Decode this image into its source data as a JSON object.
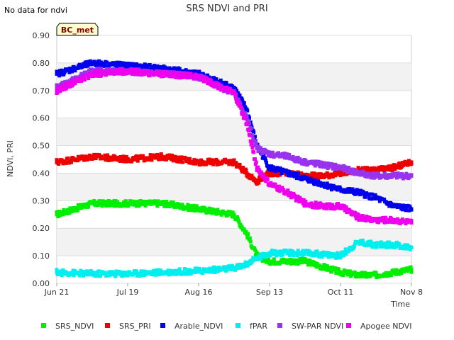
{
  "chart_data": {
    "type": "scatter",
    "title": "SRS NDVI and PRI",
    "note": "No data for ndvi",
    "badge": "BC_met",
    "xlabel": "Time",
    "ylabel": "NDVI, PRI",
    "ylim": [
      0,
      0.9
    ],
    "xlim": [
      "2022-06-21",
      "2022-11-08"
    ],
    "x_ticks": [
      "Jun 21",
      "Jul 19",
      "Aug 16",
      "Sep 13",
      "Oct 11",
      "Nov 8"
    ],
    "y_ticks": [
      "0.00",
      "0.10",
      "0.20",
      "0.30",
      "0.40",
      "0.50",
      "0.60",
      "0.70",
      "0.80",
      "0.90"
    ],
    "grid": "horizontal bands",
    "legend_position": "bottom",
    "x": [
      "2022-06-21",
      "2022-07-05",
      "2022-07-19",
      "2022-08-02",
      "2022-08-16",
      "2022-08-30",
      "2022-09-04",
      "2022-09-08",
      "2022-09-13",
      "2022-09-20",
      "2022-09-27",
      "2022-10-04",
      "2022-10-11",
      "2022-10-18",
      "2022-10-25",
      "2022-11-01",
      "2022-11-08"
    ],
    "series": [
      {
        "name": "SRS_NDVI",
        "color": "#00ee00",
        "values": [
          0.25,
          0.29,
          0.29,
          0.29,
          0.27,
          0.25,
          0.18,
          0.1,
          0.08,
          0.08,
          0.08,
          0.06,
          0.04,
          0.03,
          0.03,
          0.04,
          0.05
        ]
      },
      {
        "name": "SRS_PRI",
        "color": "#ee0000",
        "values": [
          0.44,
          0.46,
          0.45,
          0.46,
          0.44,
          0.44,
          0.4,
          0.37,
          0.4,
          0.4,
          0.39,
          0.39,
          0.4,
          0.41,
          0.41,
          0.42,
          0.44
        ]
      },
      {
        "name": "Arable_NDVI",
        "color": "#0000ee",
        "values": [
          0.76,
          0.8,
          0.79,
          0.78,
          0.76,
          0.71,
          0.63,
          0.5,
          0.42,
          0.4,
          0.38,
          0.36,
          0.34,
          0.33,
          0.31,
          0.28,
          0.27
        ]
      },
      {
        "name": "fPAR",
        "color": "#00eeee",
        "values": [
          0.04,
          0.035,
          0.035,
          0.04,
          0.045,
          0.055,
          0.07,
          0.09,
          0.11,
          0.11,
          0.11,
          0.105,
          0.1,
          0.15,
          0.14,
          0.14,
          0.13
        ]
      },
      {
        "name": "SW-PAR NDVI",
        "color": "#9933ee",
        "values": [
          0.71,
          0.77,
          0.77,
          0.76,
          0.75,
          0.69,
          0.6,
          0.49,
          0.47,
          0.46,
          0.44,
          0.43,
          0.42,
          0.4,
          0.39,
          0.39,
          0.39
        ]
      },
      {
        "name": "Apogee NDVI",
        "color": "#ee00ee",
        "values": [
          0.7,
          0.76,
          0.77,
          0.76,
          0.75,
          0.69,
          0.58,
          0.42,
          0.36,
          0.33,
          0.29,
          0.28,
          0.28,
          0.24,
          0.23,
          0.23,
          0.22
        ]
      }
    ]
  }
}
